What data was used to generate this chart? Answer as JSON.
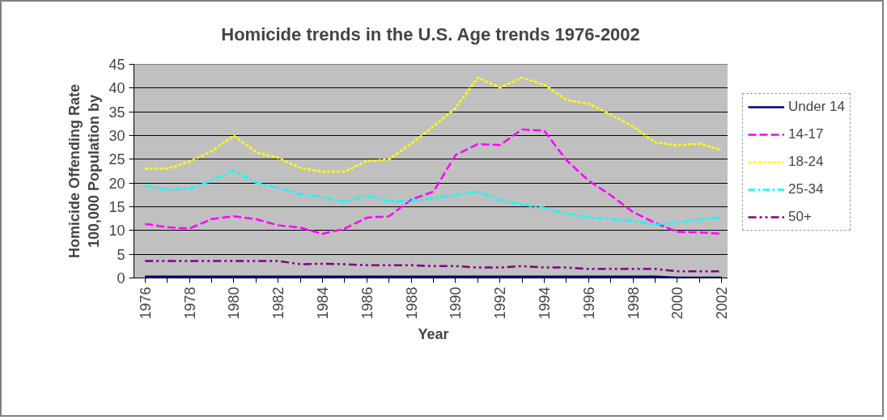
{
  "chart_data": {
    "type": "line",
    "title": "Homicide trends in the U.S.  Age trends 1976-2002",
    "xlabel": "Year",
    "ylabel": "Homicide Offending Rate\n100,000 Population by",
    "x": [
      1976,
      1977,
      1978,
      1979,
      1980,
      1981,
      1982,
      1983,
      1984,
      1985,
      1986,
      1987,
      1988,
      1989,
      1990,
      1991,
      1992,
      1993,
      1994,
      1995,
      1996,
      1997,
      1998,
      1999,
      2000,
      2001,
      2002
    ],
    "series": [
      {
        "name": "Under 14",
        "color": "#000080",
        "line_style": "solid",
        "values": [
          0.3,
          0.3,
          0.3,
          0.3,
          0.3,
          0.3,
          0.3,
          0.3,
          0.3,
          0.3,
          0.3,
          0.3,
          0.3,
          0.3,
          0.3,
          0.3,
          0.3,
          0.3,
          0.3,
          0.3,
          0.3,
          0.3,
          0.3,
          0.3,
          0.1,
          0.1,
          0.1
        ]
      },
      {
        "name": "14-17",
        "color": "#ff00ff",
        "line_style": "dashed",
        "values": [
          11.4,
          10.7,
          10.4,
          12.4,
          13,
          12.4,
          11.1,
          10.6,
          9.3,
          10.4,
          12.7,
          13,
          16.5,
          18.2,
          25.9,
          28.2,
          28,
          31.3,
          31,
          24.8,
          20.5,
          17.4,
          13.9,
          11.6,
          9.7,
          9.6,
          9.3
        ]
      },
      {
        "name": "18-24",
        "color": "#ffff00",
        "line_style": "dotted",
        "values": [
          23,
          23,
          24.5,
          26.7,
          30,
          26.5,
          25.3,
          23.2,
          22.4,
          22.4,
          24.6,
          25,
          28.3,
          31.9,
          35.8,
          42.2,
          40.1,
          42.2,
          40.7,
          37.5,
          36.7,
          34.4,
          31.9,
          28.6,
          27.9,
          28.3,
          26.9
        ]
      },
      {
        "name": "25-34",
        "color": "#00ffff",
        "line_style": "dashdot",
        "values": [
          19.5,
          18.6,
          18.8,
          20.5,
          22.6,
          20.1,
          19,
          17.7,
          17.1,
          16,
          17.4,
          16.2,
          16.2,
          16.8,
          17.5,
          18.2,
          16.5,
          15.4,
          14.8,
          13.5,
          12.8,
          12.4,
          12,
          11.2,
          11.7,
          12.3,
          12.8
        ]
      },
      {
        "name": "50+",
        "color": "#800080",
        "line_style": "dashdotdot",
        "values": [
          3.6,
          3.6,
          3.6,
          3.6,
          3.6,
          3.6,
          3.6,
          2.9,
          3,
          2.9,
          2.7,
          2.7,
          2.7,
          2.5,
          2.5,
          2.2,
          2.2,
          2.5,
          2.2,
          2.2,
          1.9,
          1.9,
          1.9,
          1.9,
          1.4,
          1.4,
          1.4
        ]
      }
    ],
    "xlim": [
      1975.5,
      2002.5
    ],
    "ylim": [
      0,
      45
    ],
    "xticks": [
      1976,
      {
        "value": 1977,
        "label": null
      },
      1978,
      {
        "value": 1979,
        "label": null
      },
      1980,
      {
        "value": 1981,
        "label": null
      },
      1982,
      {
        "value": 1983,
        "label": null
      },
      1984,
      {
        "value": 1985,
        "label": null
      },
      1986,
      {
        "value": 1987,
        "label": null
      },
      1988,
      {
        "value": 1989,
        "label": null
      },
      1990,
      {
        "value": 1991,
        "label": null
      },
      1992,
      {
        "value": 1993,
        "label": null
      },
      1994,
      {
        "value": 1995,
        "label": null
      },
      1996,
      {
        "value": 1997,
        "label": null
      },
      1998,
      {
        "value": 1999,
        "label": null
      },
      2000,
      {
        "value": 2001,
        "label": null
      },
      2002
    ],
    "yticks": [
      0,
      5,
      10,
      15,
      20,
      25,
      30,
      35,
      40,
      45
    ],
    "grid": "y",
    "legend": "right",
    "marker": "none"
  }
}
